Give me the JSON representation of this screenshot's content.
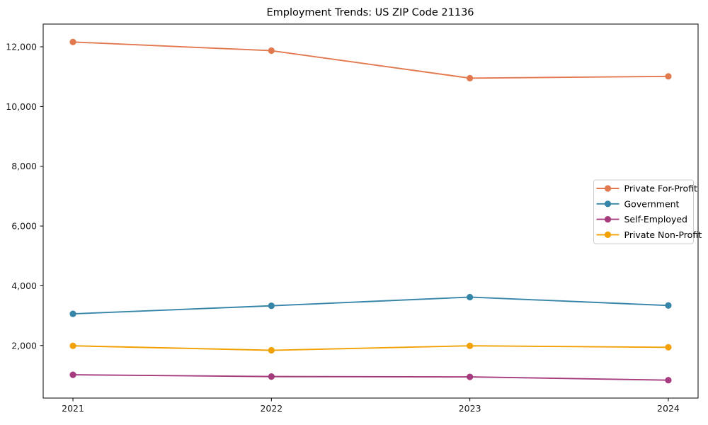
{
  "title": "Employment Trends: US ZIP Code 21136",
  "chart_data": {
    "type": "line",
    "title": "Employment Trends: US ZIP Code 21136",
    "xlabel": "",
    "ylabel": "",
    "x": [
      2021,
      2022,
      2023,
      2024
    ],
    "x_tick_labels": [
      "2021",
      "2022",
      "2023",
      "2024"
    ],
    "y_ticks": [
      2000,
      4000,
      6000,
      8000,
      10000,
      12000
    ],
    "y_tick_labels": [
      "2,000",
      "4,000",
      "6,000",
      "8,000",
      "10,000",
      "12,000"
    ],
    "xlim": [
      2020.85,
      2024.15
    ],
    "ylim": [
      240,
      12760
    ],
    "grid": false,
    "legend_position": "center-right",
    "marker": "circle",
    "background_color": "#ffffff",
    "frame_color": "#000000",
    "tick_label_color": "#1a1a1a",
    "legend_border_color": "#cccccc",
    "series": [
      {
        "name": "Private For-Profit",
        "color": "#E2794E",
        "values": [
          12160,
          11870,
          10950,
          11010
        ]
      },
      {
        "name": "Government",
        "color": "#3585A8",
        "values": [
          3060,
          3330,
          3620,
          3340
        ]
      },
      {
        "name": "Self-Employed",
        "color": "#A53B7C",
        "values": [
          1020,
          960,
          950,
          840
        ]
      },
      {
        "name": "Private Non-Profit",
        "color": "#F2A104",
        "values": [
          1990,
          1840,
          1990,
          1940
        ]
      }
    ]
  }
}
